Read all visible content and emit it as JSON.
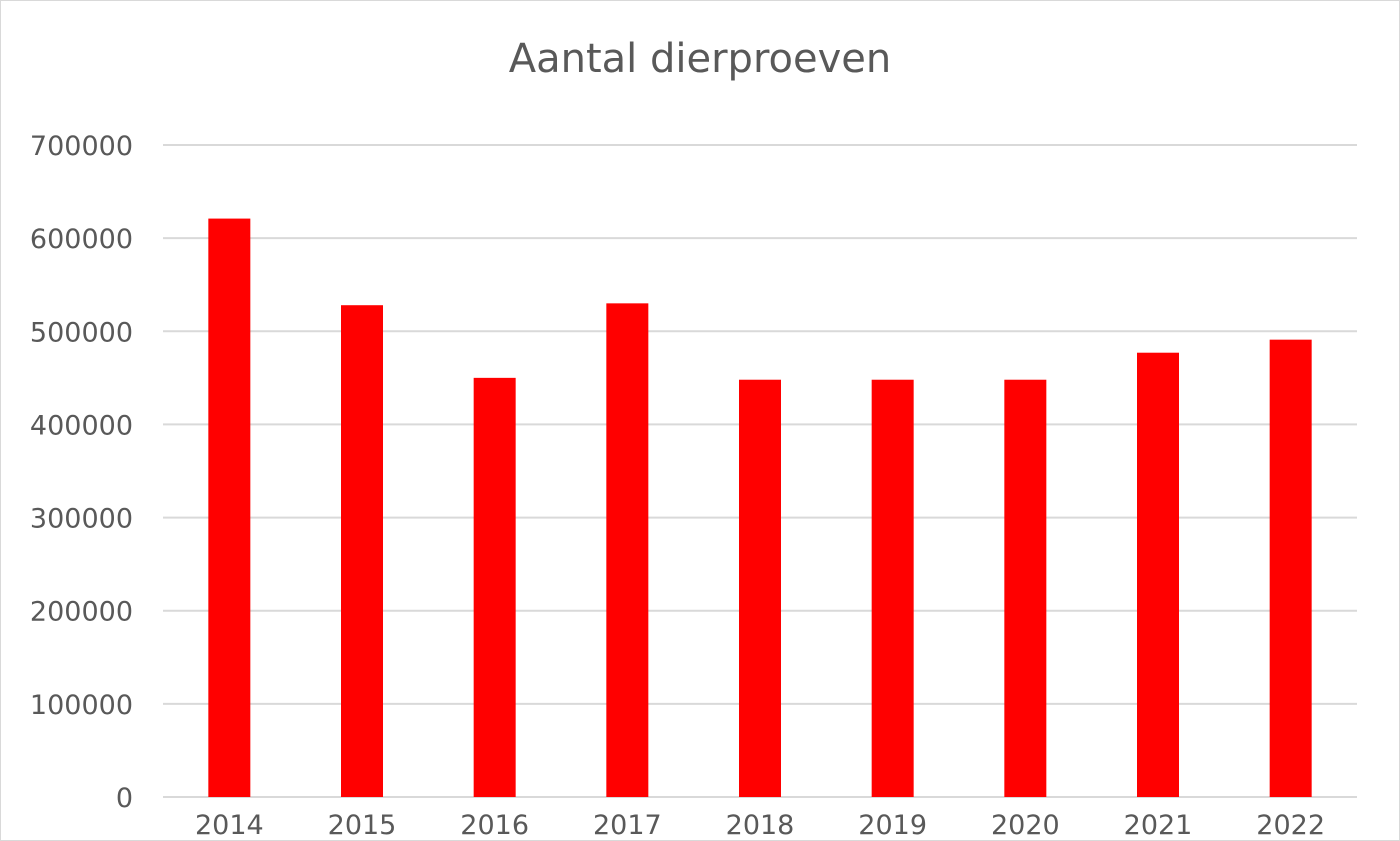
{
  "chart_data": {
    "type": "bar",
    "title": "Aantal dierproeven",
    "xlabel": "",
    "ylabel": "",
    "categories": [
      "2014",
      "2015",
      "2016",
      "2017",
      "2018",
      "2019",
      "2020",
      "2021",
      "2022"
    ],
    "series": [
      {
        "values": [
          621000,
          528000,
          450000,
          530000,
          448000,
          448000,
          448000,
          477000,
          491000
        ]
      }
    ],
    "ylim": [
      0,
      700000
    ],
    "yticks": [
      "0",
      "100000",
      "200000",
      "300000",
      "400000",
      "500000",
      "600000",
      "700000"
    ],
    "grid": true,
    "legend": "none",
    "colors": {
      "bar": "#ff0000",
      "grid": "#d9d9d9",
      "text": "#595959"
    }
  }
}
